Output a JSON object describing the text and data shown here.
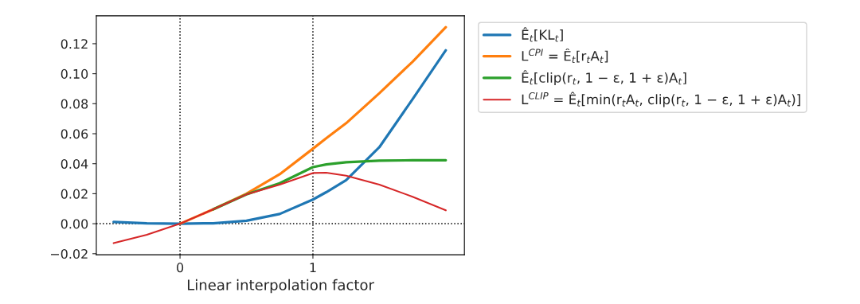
{
  "chart_data": {
    "type": "line",
    "xlabel": "Linear interpolation factor",
    "x": [
      -0.5,
      -0.25,
      0,
      0.25,
      0.5,
      0.75,
      1,
      1.1,
      1.25,
      1.5,
      1.75,
      2
    ],
    "series": [
      {
        "name": "Ê$_{t}$[KL$_{t}$]",
        "color": "#1f77b4",
        "values": [
          0.0012,
          0.0003,
          0,
          0.0003,
          0.002,
          0.0065,
          0.0161,
          0.021,
          0.029,
          0.051,
          0.083,
          0.1156
        ]
      },
      {
        "name": "L$^{CPI}$ = Ê$_{t}$[r$_{t}$A$_{t}$]",
        "color": "#ff7f0e",
        "values": [
          null,
          null,
          0,
          0.0096,
          0.02,
          0.033,
          0.05,
          0.057,
          0.067,
          0.087,
          0.108,
          0.131
        ]
      },
      {
        "name": "Ê$_{t}$[clip(r$_{t}$, 1 − ε, 1 + ε)A$_{t}$]",
        "color": "#2ca02c",
        "values": [
          null,
          null,
          null,
          0.0096,
          0.0195,
          0.027,
          0.0377,
          0.0395,
          0.041,
          0.042,
          0.0423,
          0.0423
        ]
      },
      {
        "name": "L$^{CLIP}$ = Ê$_{t}$[min(r$_{t}$A$_{t}$, clip(r$_{t}$, 1 − ε, 1 + ε)A$_{t}$)]",
        "color": "#d62728",
        "values": [
          -0.013,
          -0.0074,
          0,
          0.0096,
          0.0195,
          0.026,
          0.0338,
          0.034,
          0.032,
          0.026,
          0.018,
          0.0089
        ]
      }
    ],
    "xlim": [
      -0.63,
      2.14
    ],
    "ylim": [
      -0.0207,
      0.1386
    ],
    "xticks": [
      0,
      1
    ],
    "yticks": [
      {
        "value": -0.02,
        "label": "−0.02"
      },
      {
        "value": 0,
        "label": "0.00"
      },
      {
        "value": 0.02,
        "label": "0.02"
      },
      {
        "value": 0.04,
        "label": "0.04"
      },
      {
        "value": 0.06,
        "label": "0.06"
      },
      {
        "value": 0.08,
        "label": "0.08"
      },
      {
        "value": 0.1,
        "label": "0.10"
      },
      {
        "value": 0.12,
        "label": "0.12"
      }
    ],
    "ref_lines": [
      {
        "axis": "x",
        "value": 0,
        "color": "#000000",
        "line_style": "dotted"
      },
      {
        "axis": "x",
        "value": 1,
        "color": "#000000",
        "line_style": "dotted"
      },
      {
        "axis": "y",
        "value": 0,
        "color": "#000000",
        "line_style": "dotted"
      }
    ],
    "grid": false,
    "legend": "top right",
    "marker": "none",
    "line_style": "solid"
  }
}
